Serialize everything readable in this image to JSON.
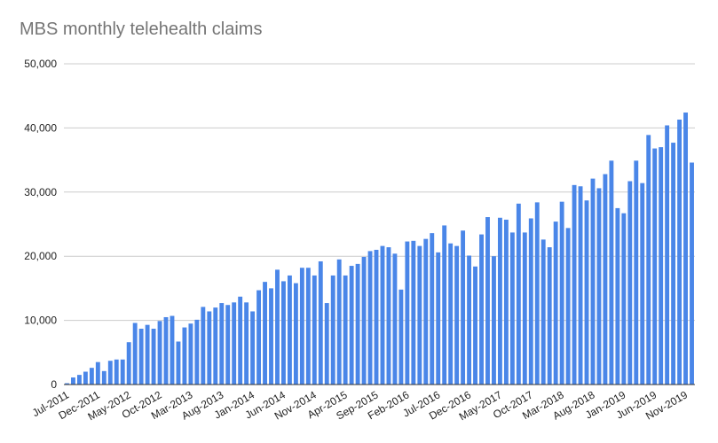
{
  "chart_data": {
    "type": "bar",
    "title": "MBS monthly telehealth claims",
    "xlabel": "",
    "ylabel": "",
    "ylim": [
      0,
      50000
    ],
    "yticks": [
      0,
      10000,
      20000,
      30000,
      40000,
      50000
    ],
    "ytick_labels": [
      "0",
      "10,000",
      "20,000",
      "30,000",
      "40,000",
      "50,000"
    ],
    "grid": true,
    "bar_color": "#4a86e8",
    "categories": [
      "Jul-2011",
      "Aug-2011",
      "Sep-2011",
      "Oct-2011",
      "Nov-2011",
      "Dec-2011",
      "Jan-2012",
      "Feb-2012",
      "Mar-2012",
      "Apr-2012",
      "May-2012",
      "Jun-2012",
      "Jul-2012",
      "Aug-2012",
      "Sep-2012",
      "Oct-2012",
      "Nov-2012",
      "Dec-2012",
      "Jan-2013",
      "Feb-2013",
      "Mar-2013",
      "Apr-2013",
      "May-2013",
      "Jun-2013",
      "Jul-2013",
      "Aug-2013",
      "Sep-2013",
      "Oct-2013",
      "Nov-2013",
      "Dec-2013",
      "Jan-2014",
      "Feb-2014",
      "Mar-2014",
      "Apr-2014",
      "May-2014",
      "Jun-2014",
      "Jul-2014",
      "Aug-2014",
      "Sep-2014",
      "Oct-2014",
      "Nov-2014",
      "Dec-2014",
      "Jan-2015",
      "Feb-2015",
      "Mar-2015",
      "Apr-2015",
      "May-2015",
      "Jun-2015",
      "Jul-2015",
      "Aug-2015",
      "Sep-2015",
      "Oct-2015",
      "Nov-2015",
      "Dec-2015",
      "Jan-2016",
      "Feb-2016",
      "Mar-2016",
      "Apr-2016",
      "May-2016",
      "Jun-2016",
      "Jul-2016",
      "Aug-2016",
      "Sep-2016",
      "Oct-2016",
      "Nov-2016",
      "Dec-2016",
      "Jan-2017",
      "Feb-2017",
      "Mar-2017",
      "Apr-2017",
      "May-2017",
      "Jun-2017",
      "Jul-2017",
      "Aug-2017",
      "Sep-2017",
      "Oct-2017",
      "Nov-2017",
      "Dec-2017",
      "Jan-2018",
      "Feb-2018",
      "Mar-2018",
      "Apr-2018",
      "May-2018",
      "Jun-2018",
      "Jul-2018",
      "Aug-2018",
      "Sep-2018",
      "Oct-2018",
      "Nov-2018",
      "Dec-2018",
      "Jan-2019",
      "Feb-2019",
      "Mar-2019",
      "Apr-2019",
      "May-2019",
      "Jun-2019",
      "Jul-2019",
      "Aug-2019",
      "Sep-2019",
      "Oct-2019",
      "Nov-2019",
      "Dec-2019"
    ],
    "xtick_labels": [
      "Jul-2011",
      "Dec-2011",
      "May-2012",
      "Oct-2012",
      "Mar-2013",
      "Aug-2013",
      "Jan-2014",
      "Jun-2014",
      "Nov-2014",
      "Apr-2015",
      "Sep-2015",
      "Feb-2016",
      "Jul-2016",
      "Dec-2016",
      "May-2017",
      "Oct-2017",
      "Mar-2018",
      "Aug-2018",
      "Jan-2019",
      "Jun-2019",
      "Nov-2019"
    ],
    "values": [
      200,
      1100,
      1500,
      2000,
      2600,
      3500,
      2100,
      3700,
      3900,
      3900,
      6600,
      9600,
      8700,
      9300,
      8700,
      9900,
      10500,
      10700,
      6700,
      8900,
      9500,
      10100,
      12100,
      11400,
      12000,
      12700,
      12400,
      12800,
      13700,
      12800,
      11400,
      14700,
      16000,
      15000,
      17900,
      16100,
      17000,
      15800,
      18200,
      18200,
      17000,
      19200,
      12700,
      17000,
      19500,
      17000,
      18500,
      18800,
      19900,
      20800,
      21000,
      21600,
      21400,
      20400,
      14800,
      22300,
      22400,
      21600,
      22700,
      23600,
      20600,
      24800,
      22000,
      21600,
      24000,
      20100,
      18400,
      23400,
      26100,
      20000,
      26000,
      25700,
      23700,
      28200,
      23700,
      25900,
      28400,
      22600,
      21400,
      25400,
      28500,
      24400,
      31100,
      30900,
      28700,
      32100,
      30600,
      32800,
      34900,
      27500,
      26700,
      31700,
      34900,
      31400,
      38900,
      36800,
      37000,
      40400,
      37700,
      41300,
      42400,
      34600
    ]
  }
}
